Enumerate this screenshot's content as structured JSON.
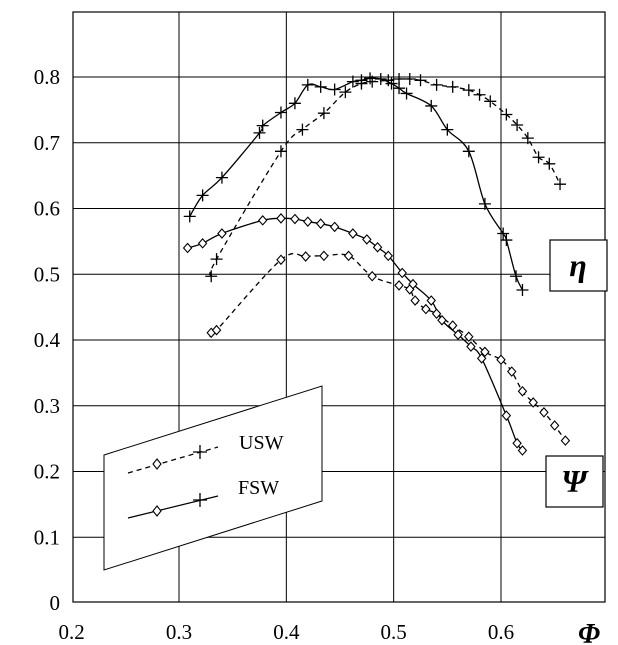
{
  "chart_data": {
    "type": "line",
    "xlabel": "Φ",
    "ylabel": "",
    "xlim": [
      0.2,
      0.65
    ],
    "ylim": [
      0,
      0.85
    ],
    "x_ticks": [
      "0.2",
      "0.3",
      "0.4",
      "0.5",
      "0.6"
    ],
    "y_ticks": [
      "0",
      "0.1",
      "0.2",
      "0.3",
      "0.4",
      "0.5",
      "0.6",
      "0.7",
      "0.8"
    ],
    "grid": true,
    "legend_placement": "lower-left",
    "legend": [
      {
        "label": "USW",
        "style": "dashed"
      },
      {
        "label": "FSW",
        "style": "solid"
      }
    ],
    "annotations": {
      "eta": "η",
      "psi": "Ψ"
    },
    "series": [
      {
        "name": "USW",
        "quantity": "η",
        "marker": "plus",
        "line": "dashed",
        "x": [
          0.33,
          0.335,
          0.395,
          0.415,
          0.435,
          0.455,
          0.47,
          0.48,
          0.495,
          0.505,
          0.515,
          0.525,
          0.54,
          0.555,
          0.57,
          0.58,
          0.59,
          0.605,
          0.615,
          0.625,
          0.635,
          0.645,
          0.655
        ],
        "y": [
          0.497,
          0.523,
          0.687,
          0.72,
          0.745,
          0.777,
          0.79,
          0.793,
          0.795,
          0.797,
          0.797,
          0.795,
          0.788,
          0.785,
          0.78,
          0.773,
          0.763,
          0.743,
          0.727,
          0.707,
          0.678,
          0.668,
          0.637
        ]
      },
      {
        "name": "FSW",
        "quantity": "η",
        "marker": "plus",
        "line": "solid",
        "x": [
          0.31,
          0.322,
          0.34,
          0.375,
          0.378,
          0.395,
          0.408,
          0.42,
          0.432,
          0.445,
          0.462,
          0.47,
          0.478,
          0.488,
          0.498,
          0.505,
          0.512,
          0.535,
          0.55,
          0.57,
          0.585,
          0.602,
          0.605,
          0.614,
          0.62
        ],
        "y": [
          0.588,
          0.62,
          0.647,
          0.715,
          0.726,
          0.746,
          0.76,
          0.788,
          0.785,
          0.781,
          0.793,
          0.795,
          0.798,
          0.797,
          0.79,
          0.783,
          0.775,
          0.756,
          0.72,
          0.687,
          0.607,
          0.562,
          0.552,
          0.497,
          0.476
        ]
      },
      {
        "name": "USW",
        "quantity": "Ψ",
        "marker": "diamond",
        "line": "dashed",
        "x": [
          0.33,
          0.335,
          0.395,
          0.418,
          0.435,
          0.458,
          0.48,
          0.505,
          0.515,
          0.52,
          0.53,
          0.54,
          0.555,
          0.57,
          0.585,
          0.6,
          0.61,
          0.62,
          0.63,
          0.64,
          0.65,
          0.66
        ],
        "y": [
          0.411,
          0.415,
          0.522,
          0.527,
          0.528,
          0.528,
          0.497,
          0.483,
          0.477,
          0.46,
          0.447,
          0.44,
          0.422,
          0.405,
          0.382,
          0.37,
          0.352,
          0.322,
          0.305,
          0.29,
          0.27,
          0.247
        ]
      },
      {
        "name": "FSW",
        "quantity": "Ψ",
        "marker": "diamond",
        "line": "solid",
        "x": [
          0.308,
          0.322,
          0.34,
          0.378,
          0.395,
          0.408,
          0.42,
          0.432,
          0.445,
          0.462,
          0.475,
          0.485,
          0.495,
          0.508,
          0.518,
          0.535,
          0.545,
          0.56,
          0.572,
          0.582,
          0.605,
          0.615,
          0.62
        ],
        "y": [
          0.54,
          0.547,
          0.562,
          0.582,
          0.585,
          0.584,
          0.58,
          0.577,
          0.572,
          0.562,
          0.553,
          0.541,
          0.528,
          0.502,
          0.485,
          0.46,
          0.43,
          0.408,
          0.39,
          0.372,
          0.285,
          0.243,
          0.232
        ]
      }
    ]
  }
}
